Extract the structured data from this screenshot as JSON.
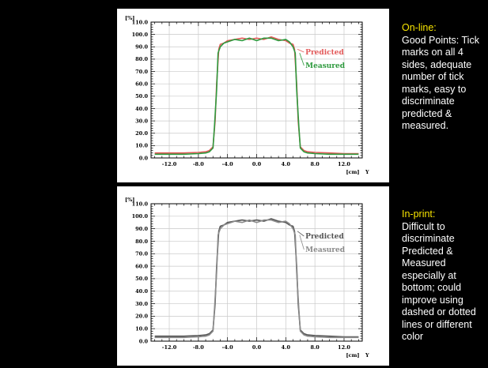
{
  "panels": {
    "top": {
      "title": "On-line:",
      "body": "Good Points: Tick marks on all 4 sides, adequate number of tick marks, easy to discriminate predicted & measured."
    },
    "bottom": {
      "title": "In-print:",
      "body": "Difficult to discriminate Predicted & Measured especially at bottom; could improve using dashed or dotted lines or different color"
    }
  },
  "colors": {
    "predicted_online": "#e35a5a",
    "measured_online": "#2e9a3e",
    "predicted_print": "#555555",
    "measured_print": "#8a8a8a",
    "grid": "#c9c9c9",
    "note_heading": "#f7e400"
  },
  "chart_data": [
    {
      "type": "line",
      "xlabel": "[cm] Y",
      "ylabel": "[%]",
      "xlim": [
        -14.5,
        14.5
      ],
      "ylim": [
        0,
        110
      ],
      "xticks": [
        -12.0,
        -8.0,
        -4.0,
        0.0,
        4.0,
        8.0,
        12.0
      ],
      "xtick_labels": [
        "-12.0",
        "-8.0",
        "-4.0",
        "0.0",
        "4.0",
        "8.0",
        "12.0"
      ],
      "yticks": [
        0,
        10,
        20,
        30,
        40,
        50,
        60,
        70,
        80,
        90,
        100,
        110
      ],
      "ytick_labels": [
        "0.0",
        "10.0",
        "20.0",
        "30.0",
        "40.0",
        "50.0",
        "60.0",
        "70.0",
        "80.0",
        "90.0",
        "100.0",
        "110.0"
      ],
      "grid": true,
      "legend": "right, labels at ends of curves",
      "series": [
        {
          "name": "Predicted",
          "color": "#e35a5a",
          "x": [
            -14,
            -12,
            -10,
            -8,
            -7,
            -6.5,
            -6,
            -5.7,
            -5.5,
            -5.2,
            -5,
            -4.5,
            -4,
            -3,
            -2,
            -1,
            0,
            1,
            2,
            3,
            4,
            4.5,
            5,
            5.2,
            5.5,
            5.7,
            6,
            6.5,
            7,
            8,
            10,
            12,
            14
          ],
          "y": [
            4,
            4,
            4,
            4.5,
            5,
            6,
            9,
            30,
            60,
            88,
            92,
            93,
            95,
            96,
            97,
            96,
            97,
            96,
            98,
            96,
            95,
            93,
            92,
            88,
            60,
            30,
            9,
            6,
            5,
            4.5,
            4,
            3.5,
            3.5
          ]
        },
        {
          "name": "Measured",
          "color": "#2e9a3e",
          "x": [
            -14,
            -12,
            -10,
            -8,
            -7,
            -6.5,
            -6,
            -5.8,
            -5.5,
            -5.3,
            -5,
            -4.5,
            -4,
            -3,
            -2,
            -1,
            0,
            1,
            2,
            3,
            4,
            4.5,
            5,
            5.3,
            5.5,
            5.8,
            6,
            6.5,
            7,
            8,
            10,
            12,
            14
          ],
          "y": [
            3,
            3,
            3,
            3.5,
            4,
            5,
            8,
            25,
            55,
            85,
            90,
            93,
            94,
            96,
            95,
            97,
            95,
            97,
            97,
            95,
            96,
            94,
            90,
            85,
            55,
            25,
            8,
            5,
            4,
            3.5,
            3,
            3,
            3
          ]
        }
      ]
    },
    {
      "type": "line",
      "xlabel": "[cm] Y",
      "ylabel": "[%]",
      "xlim": [
        -14.5,
        14.5
      ],
      "ylim": [
        0,
        110
      ],
      "xticks": [
        -12.0,
        -8.0,
        -4.0,
        0.0,
        4.0,
        8.0,
        12.0
      ],
      "xtick_labels": [
        "-12.0",
        "-8.0",
        "-4.0",
        "0.0",
        "4.0",
        "8.0",
        "12.0"
      ],
      "yticks": [
        0,
        10,
        20,
        30,
        40,
        50,
        60,
        70,
        80,
        90,
        100,
        110
      ],
      "ytick_labels": [
        "0.0",
        "10.0",
        "20.0",
        "30.0",
        "40.0",
        "50.0",
        "60.0",
        "70.0",
        "80.0",
        "90.0",
        "100.0",
        "110.0"
      ],
      "grid": true,
      "legend": "right, labels at ends of curves",
      "series": [
        {
          "name": "Predicted",
          "color": "#555555",
          "x": [
            -14,
            -12,
            -10,
            -8,
            -7,
            -6.5,
            -6,
            -5.7,
            -5.5,
            -5.2,
            -5,
            -4.5,
            -4,
            -3,
            -2,
            -1,
            0,
            1,
            2,
            3,
            4,
            4.5,
            5,
            5.2,
            5.5,
            5.7,
            6,
            6.5,
            7,
            8,
            10,
            12,
            14
          ],
          "y": [
            4,
            4,
            4,
            4.5,
            5,
            6,
            9,
            30,
            60,
            88,
            92,
            93,
            95,
            96,
            97,
            96,
            97,
            96,
            98,
            96,
            95,
            93,
            92,
            88,
            60,
            30,
            9,
            6,
            5,
            4.5,
            4,
            3.5,
            3.5
          ]
        },
        {
          "name": "Measured",
          "color": "#8a8a8a",
          "x": [
            -14,
            -12,
            -10,
            -8,
            -7,
            -6.5,
            -6,
            -5.8,
            -5.5,
            -5.3,
            -5,
            -4.5,
            -4,
            -3,
            -2,
            -1,
            0,
            1,
            2,
            3,
            4,
            4.5,
            5,
            5.3,
            5.5,
            5.8,
            6,
            6.5,
            7,
            8,
            10,
            12,
            14
          ],
          "y": [
            3,
            3,
            3,
            3.5,
            4,
            5,
            8,
            25,
            55,
            85,
            90,
            93,
            94,
            96,
            95,
            97,
            95,
            97,
            97,
            95,
            96,
            94,
            90,
            85,
            55,
            25,
            8,
            5,
            4,
            3.5,
            3,
            3,
            3
          ]
        }
      ]
    }
  ]
}
